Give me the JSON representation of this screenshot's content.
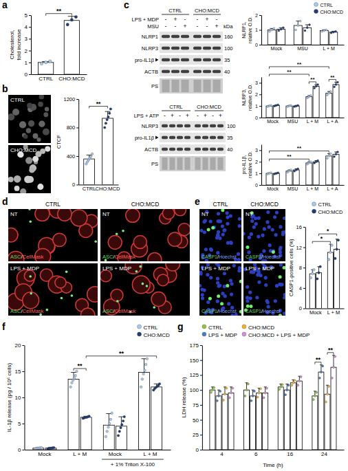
{
  "chart_data": [
    {
      "type": "bar",
      "panel": "a",
      "y_label": "Cholesterol, fold increase",
      "categories": [
        "CTRL",
        "CHO:MCD"
      ],
      "ylim": [
        0,
        5
      ],
      "yticks": [
        0,
        1,
        2,
        3,
        4,
        5
      ],
      "series": [
        {
          "colors": [
            "#a9c9ec",
            "#203d78"
          ],
          "values": [
            1.0,
            4.55
          ],
          "errors": [
            0.08,
            0.35
          ],
          "points": [
            [
              0.9,
              1.0,
              1.1
            ],
            [
              4.2,
              4.6,
              4.85
            ]
          ]
        }
      ],
      "annotations": [
        {
          "text": "**",
          "between": [
            [
              0,
              0
            ],
            [
              1,
              0
            ]
          ]
        }
      ]
    },
    {
      "type": "bar",
      "panel": "b",
      "y_label": "CTCF",
      "categories": [
        "CTRL",
        "CHO:MCD"
      ],
      "ylim": [
        0,
        1200
      ],
      "yticks": [
        0,
        400,
        800,
        1200
      ],
      "series": [
        {
          "colors": [
            "#a9c9ec",
            "#203d78"
          ],
          "values": [
            360,
            930
          ],
          "errors": [
            55,
            95
          ],
          "points": [
            [
              290,
              320,
              345,
              370,
              395,
              430
            ],
            [
              800,
              860,
              910,
              950,
              1000,
              1060
            ]
          ]
        }
      ],
      "annotations": [
        {
          "text": "**",
          "between": [
            [
              0,
              0
            ],
            [
              1,
              0
            ]
          ]
        }
      ]
    },
    {
      "type": "bar",
      "y_label": "NLRP1, relative O.D.",
      "categories": [
        "Mock",
        "MSU",
        "L + M"
      ],
      "ylim": [
        0,
        2
      ],
      "yticks": [
        0,
        1,
        2
      ],
      "legend": "top-right",
      "series": [
        {
          "name": "CTRL",
          "color": "#a9c9ec",
          "values": [
            1.0,
            1.3,
            0.95
          ],
          "errors": [
            0.1,
            0.3,
            0.06
          ],
          "points": [
            [
              0.9,
              1.0,
              1.1
            ],
            [
              1.0,
              1.3,
              1.6
            ],
            [
              0.9,
              0.95,
              1.0
            ]
          ]
        },
        {
          "name": "CHO:MCD",
          "color": "#203d78",
          "values": [
            1.05,
            1.15,
            0.85
          ],
          "errors": [
            0.1,
            0.2,
            0.06
          ],
          "points": [
            [
              0.95,
              1.05,
              1.15
            ],
            [
              0.95,
              1.15,
              1.35
            ],
            [
              0.8,
              0.85,
              0.9
            ]
          ]
        }
      ]
    },
    {
      "type": "bar",
      "y_label": "NLRP3, relative O.D.",
      "categories": [
        "Mock",
        "MSU",
        "L + M",
        "L + A"
      ],
      "ylim": [
        0,
        3.5
      ],
      "yticks": [
        0,
        1,
        2,
        3
      ],
      "series": [
        {
          "color": "#a9c9ec",
          "values": [
            1.0,
            1.0,
            1.8,
            2.1
          ],
          "errors": [
            0.05,
            0.05,
            0.1,
            0.15
          ],
          "points": [
            [
              0.95,
              1.0,
              1.05
            ],
            [
              0.95,
              1.0,
              1.05
            ],
            [
              1.7,
              1.8,
              1.9
            ],
            [
              1.95,
              2.1,
              2.25
            ]
          ]
        },
        {
          "color": "#203d78",
          "values": [
            1.05,
            1.0,
            2.7,
            2.85
          ],
          "errors": [
            0.05,
            0.05,
            0.15,
            0.2
          ],
          "points": [
            [
              1.0,
              1.05,
              1.1
            ],
            [
              0.95,
              1.0,
              1.05
            ],
            [
              2.55,
              2.7,
              2.85
            ],
            [
              2.65,
              2.85,
              3.05
            ]
          ]
        }
      ],
      "annotations": [
        {
          "text": "**",
          "between": [
            [
              2,
              0
            ],
            [
              2,
              1
            ]
          ]
        },
        {
          "text": "**",
          "between": [
            [
              3,
              0
            ],
            [
              3,
              1
            ]
          ]
        },
        {
          "text": "**",
          "between": [
            [
              0,
              0
            ],
            [
              2,
              0
            ]
          ]
        },
        {
          "text": "**",
          "between": [
            [
              0,
              0
            ],
            [
              3,
              0
            ]
          ]
        }
      ]
    },
    {
      "type": "bar",
      "y_label": "pro-IL1β, relative O.D.",
      "categories": [
        "Mock",
        "MSU",
        "L + M",
        "L + A"
      ],
      "ylim": [
        0,
        3.5
      ],
      "yticks": [
        0,
        1,
        2,
        3
      ],
      "series": [
        {
          "color": "#a9c9ec",
          "values": [
            1.0,
            1.2,
            1.9,
            2.5
          ],
          "errors": [
            0.05,
            0.1,
            0.1,
            0.2
          ],
          "points": [
            [
              0.95,
              1.0,
              1.05
            ],
            [
              1.1,
              1.2,
              1.3
            ],
            [
              1.8,
              1.9,
              2.0
            ],
            [
              2.3,
              2.5,
              2.7
            ]
          ]
        },
        {
          "color": "#203d78",
          "values": [
            1.0,
            1.3,
            2.0,
            2.65
          ],
          "errors": [
            0.05,
            0.1,
            0.1,
            0.2
          ],
          "points": [
            [
              0.95,
              1.0,
              1.05
            ],
            [
              1.2,
              1.3,
              1.4
            ],
            [
              1.9,
              2.0,
              2.1
            ],
            [
              2.45,
              2.65,
              2.85
            ]
          ]
        }
      ],
      "annotations": [
        {
          "text": "**",
          "between": [
            [
              0,
              0
            ],
            [
              2,
              0
            ]
          ]
        },
        {
          "text": "**",
          "between": [
            [
              0,
              0
            ],
            [
              3,
              0
            ]
          ]
        }
      ]
    },
    {
      "type": "bar",
      "panel": "e",
      "y_label": "CASP1-positive cells (%)",
      "categories": [
        "Mock",
        "L + M"
      ],
      "ylim": [
        0,
        16
      ],
      "yticks": [
        0,
        4,
        8,
        12,
        16
      ],
      "legend": "top-right",
      "series": [
        {
          "name": "CTRL",
          "color": "#a9c9ec",
          "values": [
            6.8,
            11.0
          ],
          "errors": [
            0.8,
            1.6
          ],
          "points": [
            [
              6.0,
              6.8,
              7.6
            ],
            [
              9.6,
              11.0,
              12.4
            ]
          ]
        },
        {
          "name": "CHO:MCD",
          "color": "#203d78",
          "values": [
            7.0,
            11.6
          ],
          "errors": [
            1.2,
            2.0
          ],
          "points": [
            [
              5.8,
              7.0,
              8.2
            ],
            [
              9.8,
              11.6,
              13.4
            ]
          ]
        }
      ],
      "annotations": [
        {
          "text": "*",
          "between": [
            [
              0,
              0
            ],
            [
              1,
              0
            ]
          ]
        },
        {
          "text": "*",
          "between": [
            [
              0,
              1
            ],
            [
              1,
              1
            ]
          ]
        }
      ]
    },
    {
      "type": "bar",
      "panel": "f",
      "y_label": "IL-1β release (pg / 10⁶ cells)",
      "categories": [
        "Mock",
        "L + M",
        "Mock",
        "L + M"
      ],
      "ylim": [
        0,
        20
      ],
      "yticks": [
        0,
        5,
        10,
        15,
        20
      ],
      "legend": "top-right",
      "series": [
        {
          "name": "CTRL",
          "color": "#a9c9ec",
          "values": [
            0.3,
            13.5,
            4.7,
            14.8
          ],
          "errors": [
            0.1,
            1.3,
            2.2,
            2.6
          ],
          "points": [
            [
              0.2,
              0.25,
              0.3,
              0.3,
              0.35,
              0.4
            ],
            [
              12.0,
              12.8,
              13.3,
              13.7,
              14.2,
              15.0
            ],
            [
              2.5,
              3.5,
              4.3,
              5.0,
              5.8,
              7.0
            ],
            [
              12.0,
              13.5,
              14.5,
              15.2,
              16.3,
              17.4
            ]
          ]
        },
        {
          "name": "CHO:MCD",
          "color": "#203d78",
          "values": [
            0.3,
            6.2,
            4.5,
            12.0
          ],
          "errors": [
            0.1,
            0.2,
            1.8,
            0.6
          ],
          "points": [
            [
              0.2,
              0.25,
              0.3,
              0.3,
              0.35,
              0.4
            ],
            [
              6.0,
              6.1,
              6.2,
              6.2,
              6.3,
              6.4
            ],
            [
              2.7,
              3.5,
              4.2,
              4.8,
              5.5,
              6.3
            ],
            [
              11.4,
              11.7,
              11.9,
              12.1,
              12.3,
              12.6
            ]
          ]
        }
      ],
      "annotations": [
        {
          "text": "**",
          "between": [
            [
              1,
              0
            ],
            [
              1,
              1
            ]
          ]
        },
        {
          "text": "**",
          "between": [
            [
              1,
              1
            ],
            [
              3,
              1
            ]
          ]
        }
      ],
      "group_labels": [
        {
          "text": "+ 1% Triton X-100",
          "from": 2,
          "to": 3
        }
      ]
    },
    {
      "type": "bar",
      "panel": "g",
      "y_label": "LDH release (%)",
      "x_label": "Time (h)",
      "categories": [
        "4",
        "6",
        "16",
        "24"
      ],
      "ylim": [
        0,
        175
      ],
      "yticks": [
        0,
        25,
        50,
        75,
        100,
        125,
        150,
        175
      ],
      "legend": "top-left",
      "series": [
        {
          "name": "CTRL",
          "color": "#8dc63f",
          "values": [
            100,
            100,
            105,
            90
          ],
          "errors": [
            5,
            12,
            5,
            8
          ],
          "points": [
            [
              96,
              100,
              104
            ],
            [
              90,
              100,
              110
            ],
            [
              101,
              105,
              109
            ],
            [
              84,
              90,
              96
            ]
          ]
        },
        {
          "name": "LPS + MDP",
          "color": "#4a7cc4",
          "values": [
            90,
            90,
            100,
            130
          ],
          "errors": [
            10,
            10,
            10,
            12
          ],
          "points": [
            [
              82,
              90,
              98
            ],
            [
              82,
              90,
              98
            ],
            [
              92,
              100,
              108
            ],
            [
              120,
              130,
              140
            ]
          ]
        },
        {
          "name": "CHO:MCD",
          "color": "#f2b134",
          "values": [
            93,
            95,
            112,
            93
          ],
          "errors": [
            12,
            8,
            5,
            15
          ],
          "points": [
            [
              83,
              93,
              103
            ],
            [
              88,
              95,
              102
            ],
            [
              108,
              112,
              116
            ],
            [
              80,
              93,
              106
            ]
          ]
        },
        {
          "name": "CHO:MCD + LPS + MDP",
          "color": "#d88fd6",
          "values": [
            95,
            95,
            115,
            138
          ],
          "errors": [
            10,
            10,
            8,
            20
          ],
          "points": [
            [
              87,
              95,
              103
            ],
            [
              87,
              95,
              103
            ],
            [
              108,
              115,
              122
            ],
            [
              120,
              138,
              156
            ]
          ]
        }
      ],
      "annotations": [
        {
          "text": "**",
          "between": [
            [
              3,
              0
            ],
            [
              3,
              1
            ]
          ]
        },
        {
          "text": "**",
          "between": [
            [
              3,
              2
            ],
            [
              3,
              3
            ]
          ]
        }
      ]
    }
  ],
  "blots": {
    "panel": "c",
    "items": [
      {
        "header": [
          {
            "label": "CTRL",
            "lanes": 3
          },
          {
            "label": "CHO:MCD",
            "lanes": 3
          }
        ],
        "unit": "kDa",
        "treatments": [
          {
            "label": "LPS + MDP",
            "signs": [
              "-",
              "+",
              "-",
              "-",
              "+",
              "-"
            ]
          },
          {
            "label": "MSU",
            "signs": [
              "-",
              "-",
              "+",
              "-",
              "-",
              "+"
            ]
          }
        ],
        "rows": [
          {
            "label": "NLRP1",
            "size": "160"
          },
          {
            "label": "NLRP3",
            "size": "100"
          },
          {
            "label": "pro-IL1β",
            "size": "35",
            "arrow": true
          },
          {
            "label": "ACTB",
            "size": "40"
          },
          {
            "label": "PS"
          }
        ]
      },
      {
        "header": [
          {
            "label": "CTRL",
            "lanes": 4
          },
          {
            "label": "CHO:MCD",
            "lanes": 4
          }
        ],
        "treatments": [
          {
            "label": "LPS + ATP",
            "signs": [
              "-",
              "+",
              "-",
              "+",
              "-",
              "+",
              "-",
              "+"
            ]
          }
        ],
        "rows": [
          {
            "label": "NLRP3",
            "size": "100"
          },
          {
            "label": "pro-IL1β",
            "size": "35",
            "arrow": true
          },
          {
            "label": "ACTB",
            "size": "40"
          },
          {
            "label": "PS"
          }
        ]
      }
    ]
  },
  "micrographs": [
    {
      "images": [
        "CTRL",
        "CHO:MCD"
      ]
    },
    {
      "panel": "d",
      "columns": [
        "CTRL",
        "CHO:MCD"
      ],
      "rows": [
        "NT",
        "LPS + MDP"
      ],
      "stain": [
        {
          "text": "ASC",
          "color": "#63d863"
        },
        {
          "text": "/",
          "color": "#ffffff"
        },
        {
          "text": "CellMask",
          "color": "#ff6060"
        }
      ]
    },
    {
      "columns": [
        "CTRL",
        "CHO:MCD"
      ],
      "rows": [
        "NT",
        "LPS + MDP"
      ],
      "stain": [
        {
          "text": "CASP1",
          "color": "#63d863"
        },
        {
          "text": "/",
          "color": "#ffffff"
        },
        {
          "text": "Hoechst",
          "color": "#7fa0ff"
        }
      ]
    }
  ]
}
